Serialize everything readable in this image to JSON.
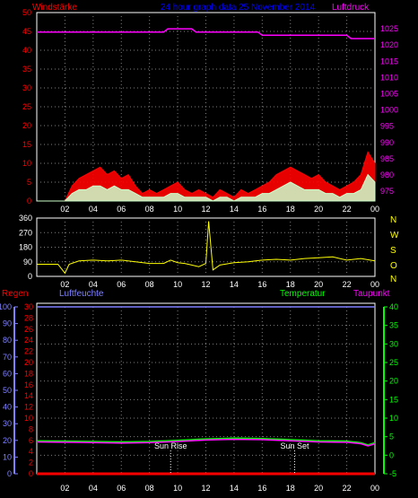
{
  "colors": {
    "background": "#000000",
    "frame": "#ffffff",
    "grid": "#808080",
    "wind_max": "#ff0000",
    "wind_avg": "#ccffcc",
    "pressure": "#ff00ff",
    "direction": "#ffff00",
    "rain": "#ff0000",
    "humidity": "#8080ff",
    "temperature": "#00ff00",
    "dewpoint": "#ff00ff",
    "title": "#0000ff"
  },
  "chart_data": [
    {
      "type": "line",
      "title": "24 hour graph data  25 November 2014",
      "left_label": "Windstärke",
      "right_label": "Luftdruck",
      "x_ticks": [
        "02",
        "04",
        "06",
        "08",
        "10",
        "12",
        "14",
        "16",
        "18",
        "20",
        "22",
        "00"
      ],
      "y_left_ticks": [
        0,
        5,
        10,
        15,
        20,
        25,
        30,
        35,
        40,
        45,
        50
      ],
      "ylim_left": [
        0,
        50
      ],
      "y_right_ticks": [
        975,
        980,
        985,
        990,
        995,
        1000,
        1005,
        1010,
        1015,
        1020,
        1025
      ],
      "ylim_right": [
        972,
        1030
      ],
      "series": [
        {
          "key": "wind_max",
          "x": [
            0,
            2,
            2.5,
            3,
            3.5,
            4,
            4.5,
            5,
            5.5,
            6,
            6.5,
            7,
            7.5,
            8,
            8.5,
            9,
            9.5,
            10,
            10.5,
            11,
            11.5,
            12,
            12.5,
            13,
            13.5,
            14,
            14.5,
            15,
            15.5,
            16,
            16.5,
            17,
            17.5,
            18,
            18.5,
            19,
            19.5,
            20,
            20.5,
            21,
            21.5,
            22,
            22.5,
            23,
            23.5,
            24
          ],
          "y": [
            0,
            0,
            4,
            6,
            7,
            8,
            9,
            7,
            8,
            6,
            7,
            4,
            2,
            3,
            2,
            3,
            4,
            5,
            3,
            2,
            3,
            2,
            1,
            3,
            2,
            1,
            3,
            2,
            3,
            4,
            5,
            7,
            8,
            9,
            8,
            7,
            6,
            7,
            5,
            4,
            3,
            4,
            5,
            7,
            13,
            10
          ]
        },
        {
          "key": "wind_avg",
          "x": [
            0,
            2,
            2.5,
            3,
            3.5,
            4,
            4.5,
            5,
            5.5,
            6,
            6.5,
            7,
            7.5,
            8,
            8.5,
            9,
            9.5,
            10,
            10.5,
            11,
            11.5,
            12,
            12.5,
            13,
            13.5,
            14,
            14.5,
            15,
            15.5,
            16,
            16.5,
            17,
            17.5,
            18,
            18.5,
            19,
            19.5,
            20,
            20.5,
            21,
            21.5,
            22,
            22.5,
            23,
            23.5,
            24
          ],
          "y": [
            0,
            0,
            2,
            3,
            3,
            4,
            4,
            3,
            4,
            3,
            3,
            2,
            1,
            1,
            1,
            1,
            2,
            2,
            1,
            1,
            1,
            1,
            0,
            1,
            1,
            0,
            1,
            1,
            1,
            2,
            2,
            3,
            4,
            5,
            4,
            3,
            3,
            3,
            2,
            2,
            1,
            2,
            2,
            3,
            7,
            5
          ]
        },
        {
          "key": "pressure",
          "x": [
            0,
            9,
            9.3,
            11,
            11.3,
            13,
            15.7,
            16,
            22,
            22.3,
            24
          ],
          "y": [
            1024,
            1024,
            1025,
            1025,
            1024,
            1024,
            1024,
            1023,
            1023,
            1022,
            1022
          ]
        }
      ]
    },
    {
      "type": "line",
      "right_labels": [
        "N",
        "W",
        "S",
        "O",
        "N"
      ],
      "x_ticks": [
        "02",
        "04",
        "06",
        "08",
        "10",
        "12",
        "14",
        "16",
        "18",
        "20",
        "22",
        "00"
      ],
      "y_ticks": [
        0,
        90,
        180,
        270,
        360
      ],
      "ylim": [
        0,
        360
      ],
      "series": [
        {
          "key": "direction",
          "x": [
            0,
            1.5,
            2,
            2.3,
            3,
            4,
            5,
            6,
            7,
            8,
            9,
            9.5,
            10,
            10.5,
            11,
            11.5,
            12,
            12.2,
            12.5,
            13,
            14,
            15,
            16,
            17,
            18,
            19,
            20,
            21,
            22,
            23,
            24
          ],
          "y": [
            75,
            75,
            20,
            75,
            95,
            100,
            95,
            100,
            90,
            80,
            80,
            100,
            85,
            80,
            70,
            60,
            80,
            340,
            40,
            70,
            85,
            90,
            100,
            105,
            100,
            110,
            115,
            120,
            100,
            110,
            95
          ]
        }
      ]
    },
    {
      "type": "line",
      "labels": {
        "rain": "Regen",
        "humidity": "Luftfeuchte",
        "temperature": "Temperatur",
        "dewpoint": "Taupunkt"
      },
      "annotations": [
        {
          "label": "Sun Rise",
          "x": 9.5
        },
        {
          "label": "Sun Set",
          "x": 18.3
        }
      ],
      "x_ticks": [
        "02",
        "04",
        "06",
        "08",
        "10",
        "12",
        "14",
        "16",
        "18",
        "20",
        "22",
        "00"
      ],
      "y_humidity_ticks": [
        0,
        10,
        20,
        30,
        40,
        50,
        60,
        70,
        80,
        90,
        100
      ],
      "ylim_humidity": [
        0,
        100
      ],
      "y_rain_ticks": [
        0,
        2,
        4,
        6,
        8,
        10,
        12,
        14,
        16,
        18,
        20,
        22,
        24,
        26,
        28,
        30
      ],
      "ylim_rain": [
        0,
        30
      ],
      "y_temp_ticks": [
        -5,
        0,
        5,
        10,
        15,
        20,
        25,
        30,
        35,
        40
      ],
      "ylim_temp": [
        -5,
        40
      ],
      "series": [
        {
          "key": "rain",
          "x": [
            0,
            24
          ],
          "y": [
            0,
            0
          ]
        },
        {
          "key": "humidity",
          "x": [
            0,
            24
          ],
          "y": [
            100,
            100
          ]
        },
        {
          "key": "temperature",
          "x": [
            0,
            2,
            4,
            6,
            8,
            10,
            12,
            14,
            16,
            18,
            20,
            22,
            23,
            23.5,
            24
          ],
          "y": [
            3.9,
            3.8,
            3.7,
            3.6,
            3.7,
            4.0,
            4.4,
            4.6,
            4.5,
            4.2,
            3.9,
            3.8,
            3.4,
            2.8,
            3.4
          ]
        },
        {
          "key": "dewpoint",
          "x": [
            0,
            2,
            4,
            6,
            8,
            10,
            12,
            14,
            16,
            18,
            20,
            22,
            23,
            23.5,
            24
          ],
          "y": [
            3.6,
            3.5,
            3.4,
            3.3,
            3.4,
            3.7,
            4.1,
            4.3,
            4.2,
            3.9,
            3.6,
            3.5,
            3.1,
            2.5,
            3.1
          ]
        }
      ]
    }
  ]
}
